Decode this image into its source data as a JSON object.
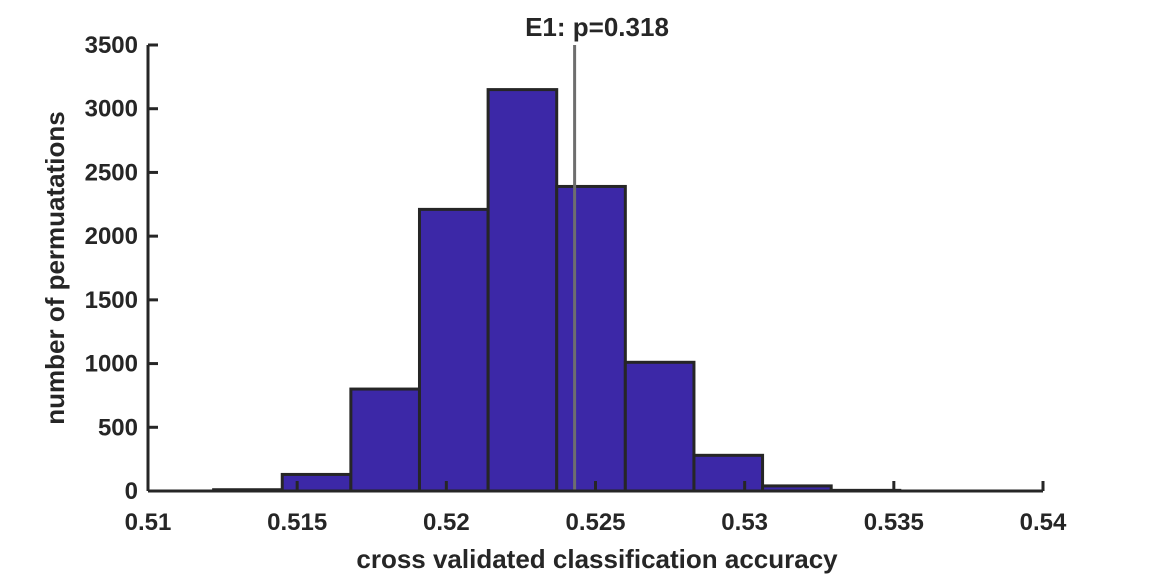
{
  "chart_data": {
    "type": "bar",
    "title": "E1: p=0.318",
    "xlabel": "cross validated classification accuracy",
    "ylabel": "number of permuatations",
    "xlim": [
      0.51,
      0.54
    ],
    "ylim": [
      0,
      3500
    ],
    "xticks": [
      "0.51",
      "0.515",
      "0.52",
      "0.525",
      "0.53",
      "0.535",
      "0.54"
    ],
    "xtick_values": [
      0.51,
      0.515,
      0.52,
      0.525,
      0.53,
      0.535,
      0.54
    ],
    "yticks": [
      "0",
      "500",
      "1000",
      "1500",
      "2000",
      "2500",
      "3000",
      "3500"
    ],
    "ytick_values": [
      0,
      500,
      1000,
      1500,
      2000,
      2500,
      3000,
      3500
    ],
    "bins": [
      {
        "x0": 0.5122,
        "x1": 0.5145,
        "value": 10
      },
      {
        "x0": 0.5145,
        "x1": 0.5168,
        "value": 130
      },
      {
        "x0": 0.5168,
        "x1": 0.5191,
        "value": 800
      },
      {
        "x0": 0.5191,
        "x1": 0.5214,
        "value": 2210
      },
      {
        "x0": 0.5214,
        "x1": 0.5237,
        "value": 3150
      },
      {
        "x0": 0.5237,
        "x1": 0.526,
        "value": 2390
      },
      {
        "x0": 0.526,
        "x1": 0.5283,
        "value": 1010
      },
      {
        "x0": 0.5283,
        "x1": 0.5306,
        "value": 280
      },
      {
        "x0": 0.5306,
        "x1": 0.5329,
        "value": 40
      },
      {
        "x0": 0.5329,
        "x1": 0.5352,
        "value": 5
      },
      {
        "x0": 0.5352,
        "x1": 0.5375,
        "value": 0
      },
      {
        "x0": 0.5375,
        "x1": 0.54,
        "value": 0
      }
    ],
    "observed_line": {
      "x": 0.5243
    },
    "colors": {
      "bar_fill": "#3c28a7",
      "bar_edge": "#262626",
      "observed_line": "#6e6e6e",
      "axis": "#262626"
    },
    "grid": false,
    "legend": "none"
  }
}
